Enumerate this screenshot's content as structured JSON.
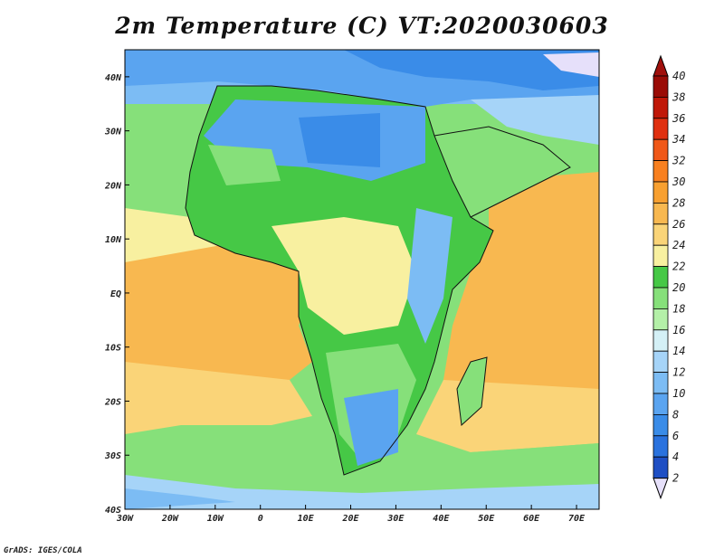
{
  "title": "2m Temperature (C) VT:2020030603",
  "credit": "GrADS: IGES/COLA",
  "map": {
    "lon_range": [
      -30,
      75
    ],
    "lat_range": [
      -40,
      45
    ],
    "lon_ticks": [
      {
        "value": -30,
        "label": "30W"
      },
      {
        "value": -20,
        "label": "20W"
      },
      {
        "value": -10,
        "label": "10W"
      },
      {
        "value": 0,
        "label": "0"
      },
      {
        "value": 10,
        "label": "10E"
      },
      {
        "value": 20,
        "label": "20E"
      },
      {
        "value": 30,
        "label": "30E"
      },
      {
        "value": 40,
        "label": "40E"
      },
      {
        "value": 50,
        "label": "50E"
      },
      {
        "value": 60,
        "label": "60E"
      },
      {
        "value": 70,
        "label": "70E"
      }
    ],
    "lat_ticks": [
      {
        "value": 40,
        "label": "40N"
      },
      {
        "value": 30,
        "label": "30N"
      },
      {
        "value": 20,
        "label": "20N"
      },
      {
        "value": 10,
        "label": "10N"
      },
      {
        "value": 0,
        "label": "EQ"
      },
      {
        "value": -10,
        "label": "10S"
      },
      {
        "value": -20,
        "label": "20S"
      },
      {
        "value": -30,
        "label": "30S"
      },
      {
        "value": -40,
        "label": "40S"
      }
    ]
  },
  "colorbar": {
    "labels": [
      "2",
      "4",
      "6",
      "8",
      "10",
      "12",
      "14",
      "16",
      "18",
      "20",
      "22",
      "24",
      "26",
      "28",
      "30",
      "32",
      "34",
      "36",
      "38",
      "40"
    ],
    "colors": [
      "#1c2f8f",
      "#1f4fc4",
      "#2a72de",
      "#3a8ce8",
      "#5aa4f0",
      "#7cbcf4",
      "#a6d4f8",
      "#d4f0f6",
      "#b4f0a8",
      "#86e07a",
      "#46c846",
      "#f8f0a0",
      "#fad478",
      "#f8b850",
      "#f8a030",
      "#f88020",
      "#f05818",
      "#e03010",
      "#c01808",
      "#9a0c06",
      "#7a0404"
    ],
    "low_extend_color": "#e6e0fa",
    "high_extend_color": "#a0100c"
  }
}
